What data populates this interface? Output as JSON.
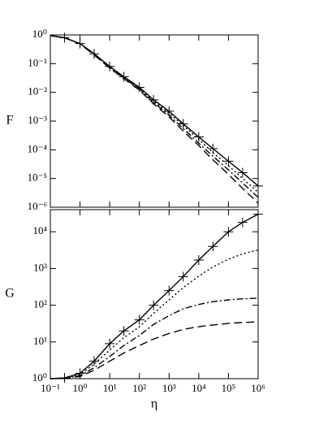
{
  "chart_data": [
    {
      "type": "line",
      "ylabel": "F",
      "xscale": "log",
      "yscale": "log",
      "xlim": [
        0.1,
        1000000
      ],
      "ylim": [
        1e-06,
        1
      ],
      "xticks": [
        0.1,
        1,
        10,
        100,
        1000,
        10000,
        100000,
        1000000
      ],
      "yticks": [
        {
          "value": 1e-06,
          "label": "10⁻⁶"
        },
        {
          "value": 1e-05,
          "label": "10⁻⁵"
        },
        {
          "value": 0.0001,
          "label": "10⁻⁴"
        },
        {
          "value": 0.001,
          "label": "10⁻³"
        },
        {
          "value": 0.01,
          "label": "10⁻²"
        },
        {
          "value": 0.1,
          "label": "10⁻¹"
        },
        {
          "value": 1,
          "label": "10⁰"
        }
      ],
      "x": [
        0.1,
        0.3,
        1,
        3,
        10,
        30,
        100,
        300,
        1000,
        3000,
        10000,
        30000,
        100000,
        300000,
        1000000
      ],
      "series": [
        {
          "color": "#000000",
          "dash": "solid",
          "marker": "+",
          "values": [
            0.95,
            0.8,
            0.5,
            0.22,
            0.08,
            0.035,
            0.015,
            0.0055,
            0.0022,
            0.0008,
            0.00028,
            0.00011,
            4e-05,
            1.6e-05,
            5.5e-06
          ]
        },
        {
          "color": "#000000",
          "dash": "dotted",
          "values": [
            0.95,
            0.8,
            0.5,
            0.22,
            0.08,
            0.034,
            0.014,
            0.005,
            0.0019,
            0.0007,
            0.00023,
            8e-05,
            2.8e-05,
            1e-05,
            3.3e-06
          ]
        },
        {
          "color": "#000000",
          "dash": "dashdot",
          "values": [
            0.95,
            0.8,
            0.5,
            0.21,
            0.075,
            0.032,
            0.013,
            0.0045,
            0.0016,
            0.00055,
            0.00017,
            6e-05,
            2e-05,
            7e-06,
            2.2e-06
          ]
        },
        {
          "color": "#000000",
          "dash": "dashed",
          "values": [
            0.95,
            0.8,
            0.49,
            0.2,
            0.07,
            0.03,
            0.012,
            0.004,
            0.0014,
            0.00045,
            0.00014,
            4.5e-05,
            1.4e-05,
            4.5e-06,
            1.4e-06
          ]
        }
      ]
    },
    {
      "type": "line",
      "ylabel": "G",
      "xlabel": "η",
      "xscale": "log",
      "yscale": "log",
      "xlim": [
        0.1,
        1000000
      ],
      "ylim": [
        1,
        40000
      ],
      "xticks": [
        {
          "value": 0.1,
          "label": "10⁻¹"
        },
        {
          "value": 1,
          "label": "10⁰"
        },
        {
          "value": 10,
          "label": "10¹"
        },
        {
          "value": 100,
          "label": "10²"
        },
        {
          "value": 1000,
          "label": "10³"
        },
        {
          "value": 10000,
          "label": "10⁴"
        },
        {
          "value": 100000,
          "label": "10⁵"
        },
        {
          "value": 1000000,
          "label": "10⁶"
        }
      ],
      "yticks": [
        {
          "value": 1,
          "label": "10⁰"
        },
        {
          "value": 10,
          "label": "10¹"
        },
        {
          "value": 100,
          "label": "10²"
        },
        {
          "value": 1000,
          "label": "10³"
        },
        {
          "value": 10000,
          "label": "10⁴"
        }
      ],
      "x": [
        0.1,
        0.3,
        1,
        3,
        10,
        30,
        100,
        300,
        1000,
        3000,
        10000,
        30000,
        100000,
        300000,
        1000000
      ],
      "series": [
        {
          "color": "#000000",
          "dash": "solid",
          "marker": "+",
          "values": [
            1,
            1.05,
            1.4,
            3,
            9,
            20,
            40,
            100,
            250,
            600,
            1700,
            4000,
            10000,
            18000,
            30000
          ]
        },
        {
          "color": "#000000",
          "dash": "dotted",
          "values": [
            1,
            1.04,
            1.3,
            2.5,
            6,
            13,
            26,
            60,
            140,
            300,
            620,
            1100,
            1800,
            2500,
            3200
          ]
        },
        {
          "color": "#000000",
          "dash": "dashdot",
          "values": [
            1,
            1.03,
            1.2,
            2,
            4,
            8,
            15,
            30,
            52,
            80,
            105,
            125,
            140,
            150,
            155
          ]
        },
        {
          "color": "#000000",
          "dash": "dashed",
          "values": [
            1,
            1.02,
            1.15,
            1.7,
            3,
            5,
            8,
            12,
            17,
            22,
            26,
            29,
            32,
            34,
            35
          ]
        }
      ]
    }
  ]
}
